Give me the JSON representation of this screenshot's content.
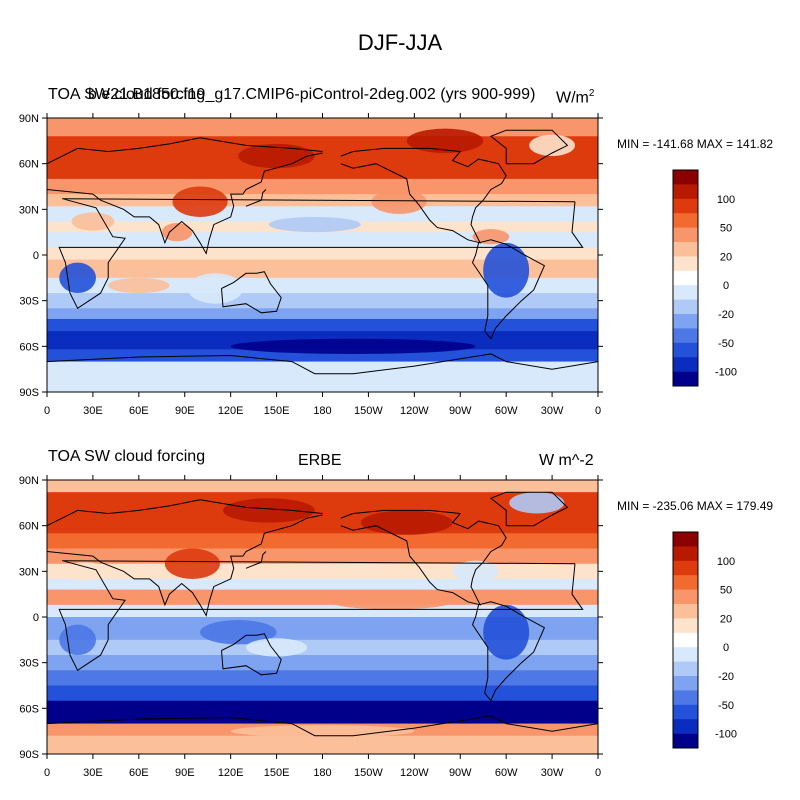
{
  "title": "DJF-JJA",
  "panels": [
    {
      "left_title": "TOA SW cloud forcing",
      "center_title": "b.e21.B1850.f19_g17.CMIP6-piControl-2deg.002 (yrs 900-999)",
      "units_main": "W/m",
      "units_sup": "2",
      "minmax": "MIN = -141.68 MAX = 141.82"
    },
    {
      "left_title": "TOA SW cloud forcing",
      "center_title": "ERBE",
      "units_main": "W m^-2",
      "units_sup": "",
      "minmax": "MIN = -235.06 MAX = 179.49"
    }
  ],
  "x_ticks": [
    "0",
    "30E",
    "60E",
    "90E",
    "120E",
    "150E",
    "180",
    "150W",
    "120W",
    "90W",
    "60W",
    "30W",
    "0"
  ],
  "y_ticks": [
    "90N",
    "60N",
    "30N",
    "0",
    "30S",
    "60S",
    "90S"
  ],
  "colorbar": {
    "labels": [
      "100",
      "50",
      "20",
      "0",
      "-20",
      "-50",
      "-100"
    ],
    "colors": [
      "#8b0000",
      "#b81a00",
      "#dd3a0e",
      "#f26a30",
      "#f8956a",
      "#fbbf9a",
      "#fde2cc",
      "#ffffff",
      "#d7e9fb",
      "#afcaf6",
      "#7ea3f0",
      "#4d78e6",
      "#2451d9",
      "#0a2dc0",
      "#00008b"
    ]
  },
  "map_palette": {
    "deep_red": "#b81a00",
    "red": "#dd3a0e",
    "orange": "#f26a30",
    "salmon": "#f8956a",
    "peach": "#fbbf9a",
    "cream": "#fde2cc",
    "pale_blue": "#d7e9fb",
    "light_blue": "#afcaf6",
    "mid_blue": "#7ea3f0",
    "blue": "#4d78e6",
    "dark_blue": "#2451d9",
    "navy": "#0a2dc0",
    "deep_navy": "#00008b"
  }
}
